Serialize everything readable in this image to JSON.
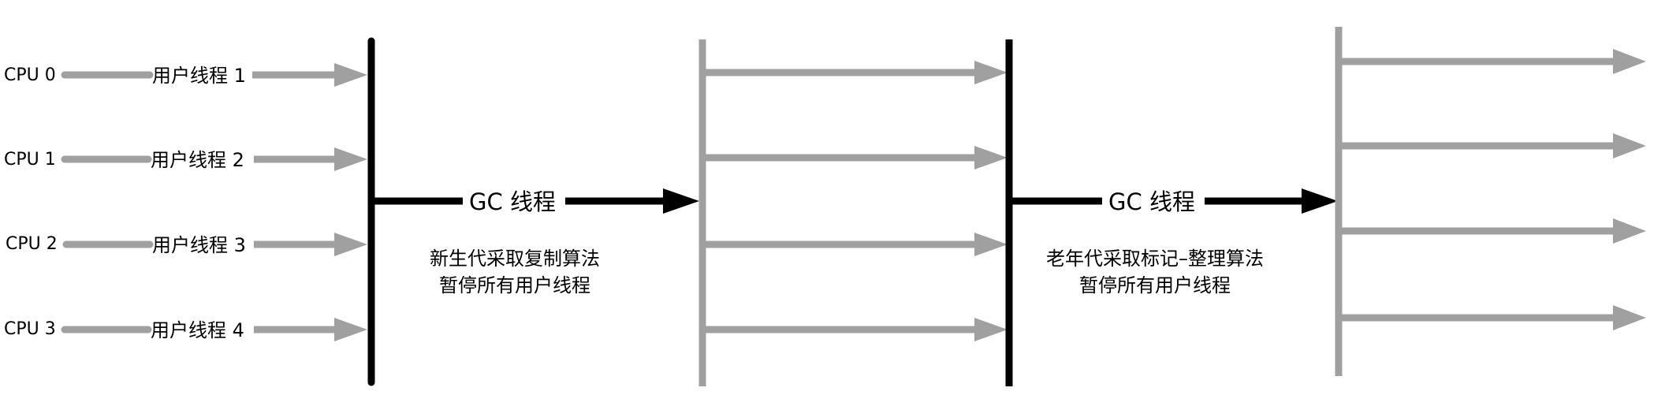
{
  "colors": {
    "thread_line": "#a0a0a0",
    "safepoint_line": "#000000",
    "text": "#000000",
    "background": "#ffffff"
  },
  "cpus": [
    {
      "label": "CPU 0",
      "thread_label": "用户线程 1"
    },
    {
      "label": "CPU 1",
      "thread_label": "用户线程 2"
    },
    {
      "label": "CPU 2",
      "thread_label": "用户线程 3"
    },
    {
      "label": "CPU 3",
      "thread_label": "用户线程 4"
    }
  ],
  "phases": [
    {
      "gc_label": "GC 线程",
      "description_line1": "新生代采取复制算法",
      "description_line2": "暂停所有用户线程"
    },
    {
      "gc_label": "GC 线程",
      "description_line1": "老年代采取标记–整理算法",
      "description_line2": "暂停所有用户线程"
    }
  ]
}
